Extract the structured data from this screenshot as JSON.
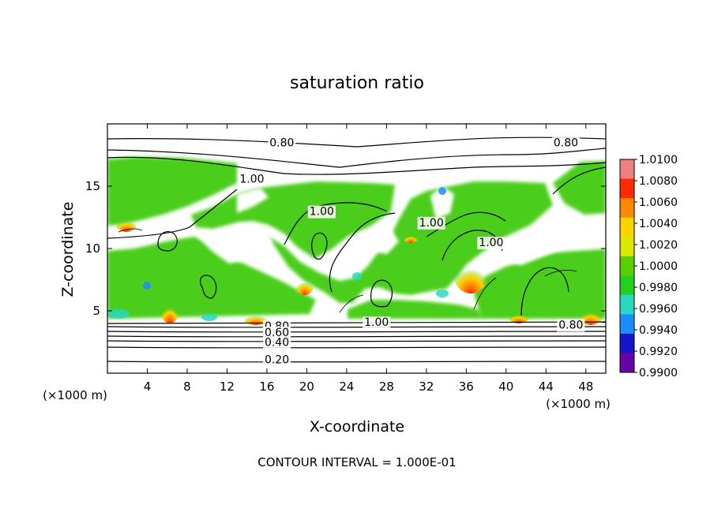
{
  "chart_data": {
    "type": "heatmap",
    "title": "saturation ratio",
    "xlabel": "X-coordinate",
    "ylabel": "Z-coordinate",
    "x_unit": "(×1000 m)",
    "z_unit": "(×1000 m)",
    "xlim": [
      0,
      50
    ],
    "ylim": [
      0,
      20
    ],
    "x_ticks": [
      4,
      8,
      12,
      16,
      20,
      24,
      28,
      32,
      36,
      40,
      44,
      48
    ],
    "y_ticks": [
      5,
      10,
      15
    ],
    "colorbar": {
      "min": 0.99,
      "max": 1.01,
      "tick_labels": [
        "1.0100",
        "1.0080",
        "1.0060",
        "1.0040",
        "1.0020",
        "1.0000",
        "0.9980",
        "0.9960",
        "0.9940",
        "0.9920",
        "0.9900"
      ],
      "colors": [
        "#f08080",
        "#ff2a00",
        "#ff8800",
        "#ffd200",
        "#d8e800",
        "#58d000",
        "#22d020",
        "#2ad8c0",
        "#1c8cff",
        "#1414c8",
        "#6a00a8"
      ]
    },
    "contour_labels": [
      {
        "text": "0.80",
        "x": 17.5,
        "z": 18.5
      },
      {
        "text": "0.80",
        "x": 46,
        "z": 18.5
      },
      {
        "text": "1.00",
        "x": 14.5,
        "z": 15.6
      },
      {
        "text": "1.00",
        "x": 21.5,
        "z": 13.0
      },
      {
        "text": "1.00",
        "x": 32.5,
        "z": 12.1
      },
      {
        "text": "1.00",
        "x": 38.5,
        "z": 10.5
      },
      {
        "text": "1.00",
        "x": 27.0,
        "z": 4.1
      },
      {
        "text": "0.80",
        "x": 17.0,
        "z": 3.8
      },
      {
        "text": "0.60",
        "x": 17.0,
        "z": 3.3
      },
      {
        "text": "0.40",
        "x": 17.0,
        "z": 2.5
      },
      {
        "text": "0.20",
        "x": 17.0,
        "z": 1.1
      },
      {
        "text": "0.80",
        "x": 46.5,
        "z": 3.9
      }
    ],
    "annotation": "CONTOUR INTERVAL = 1.000E-01"
  }
}
